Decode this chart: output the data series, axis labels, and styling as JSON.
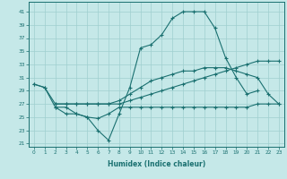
{
  "bg_color": "#c5e8e8",
  "line_color": "#1a7070",
  "grid_color": "#9fcfcf",
  "xlabel": "Humidex (Indice chaleur)",
  "xlim": [
    -0.5,
    23.5
  ],
  "ylim": [
    20.5,
    42.5
  ],
  "xticks": [
    0,
    1,
    2,
    3,
    4,
    5,
    6,
    7,
    8,
    9,
    10,
    11,
    12,
    13,
    14,
    15,
    16,
    17,
    18,
    19,
    20,
    21,
    22,
    23
  ],
  "yticks": [
    21,
    23,
    25,
    27,
    29,
    31,
    33,
    35,
    37,
    39,
    41
  ],
  "line1_x": [
    0,
    1,
    2,
    3,
    4,
    5,
    6,
    7,
    8,
    9,
    10,
    11,
    12,
    13,
    14,
    15,
    16,
    17,
    18,
    19,
    20,
    21
  ],
  "line1_y": [
    30,
    29.5,
    26.5,
    25.5,
    25.5,
    25.0,
    23.0,
    21.5,
    25.5,
    29.5,
    35.5,
    36.0,
    37.5,
    40.0,
    41.0,
    41.0,
    41.0,
    38.5,
    34.0,
    31.0,
    28.5,
    29.0
  ],
  "line2_x": [
    0,
    1,
    2,
    3,
    4,
    5,
    6,
    7,
    8,
    9,
    10,
    11,
    12,
    13,
    14,
    15,
    16,
    17,
    18,
    19,
    20,
    21,
    22,
    23
  ],
  "line2_y": [
    30.0,
    29.5,
    27.0,
    27.0,
    27.0,
    27.0,
    27.0,
    27.0,
    27.0,
    27.5,
    28.0,
    28.5,
    29.0,
    29.5,
    30.0,
    30.5,
    31.0,
    31.5,
    32.0,
    32.5,
    33.0,
    33.5,
    33.5,
    33.5
  ],
  "line3_x": [
    2,
    3,
    4,
    5,
    6,
    7,
    8,
    9,
    10,
    11,
    12,
    13,
    14,
    15,
    16,
    17,
    18,
    19,
    20,
    21,
    22,
    23
  ],
  "line3_y": [
    27.0,
    27.0,
    27.0,
    27.0,
    27.0,
    27.0,
    27.5,
    28.5,
    29.5,
    30.5,
    31.0,
    31.5,
    32.0,
    32.0,
    32.5,
    32.5,
    32.5,
    32.0,
    31.5,
    31.0,
    28.5,
    27.0
  ],
  "line4_x": [
    2,
    3,
    4,
    5,
    6,
    7,
    8,
    9,
    10,
    11,
    12,
    13,
    14,
    15,
    16,
    17,
    18,
    19,
    20,
    21,
    22,
    23
  ],
  "line4_y": [
    26.5,
    26.5,
    25.5,
    25.0,
    24.8,
    25.5,
    26.5,
    26.5,
    26.5,
    26.5,
    26.5,
    26.5,
    26.5,
    26.5,
    26.5,
    26.5,
    26.5,
    26.5,
    26.5,
    27.0,
    27.0,
    27.0
  ]
}
